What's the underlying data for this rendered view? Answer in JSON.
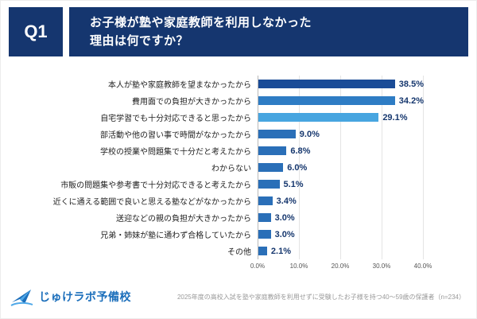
{
  "header": {
    "q_label": "Q1",
    "title_line1": "お子様が塾や家庭教師を利用しなかった",
    "title_line2": "理由は何ですか？"
  },
  "chart_data": {
    "type": "bar",
    "orientation": "horizontal",
    "title": "お子様が塾や家庭教師を利用しなかった理由は何ですか？",
    "categories": [
      "本人が塾や家庭教師を望まなかったから",
      "費用面での負担が大きかったから",
      "自宅学習でも十分対応できると思ったから",
      "部活動や他の習い事で時間がなかったから",
      "学校の授業や問題集で十分だと考えたから",
      "わからない",
      "市販の問題集や参考書で十分対応できると考えたから",
      "近くに通える範囲で良いと思える塾などがなかったから",
      "送迎などの親の負担が大きかったから",
      "兄弟・姉妹が塾に通わず合格していたから",
      "その他"
    ],
    "values": [
      38.5,
      34.2,
      29.1,
      9.0,
      6.8,
      6.0,
      5.1,
      3.4,
      3.0,
      3.0,
      2.1
    ],
    "value_labels": [
      "38.5%",
      "34.2%",
      "29.1%",
      "9.0%",
      "6.8%",
      "6.0%",
      "5.1%",
      "3.4%",
      "3.0%",
      "3.0%",
      "2.1%"
    ],
    "bar_colors": [
      "#1B4C97",
      "#2E7CC4",
      "#47A5E0",
      "#2A6FB8",
      "#2A6FB8",
      "#2A6FB8",
      "#2A6FB8",
      "#2A6FB8",
      "#2A6FB8",
      "#2A6FB8",
      "#2A6FB8"
    ],
    "xlim": [
      0,
      40
    ],
    "x_ticks": [
      "0.0%",
      "10.0%",
      "20.0%",
      "30.0%",
      "40.0%"
    ],
    "grid": true,
    "legend": false
  },
  "colors": {
    "header_bg": "#15366F",
    "value_label": "#16376E",
    "logo_blue": "#1C6FBB",
    "logo_light_blue": "#4FA8E8"
  },
  "footer": {
    "logo_text": "じゅけラボ予備校",
    "caption": "2025年度の高校入試を塾や家庭教師を利用せずに受験したお子様を持つ40〜59歳の保護者（n=234）"
  }
}
